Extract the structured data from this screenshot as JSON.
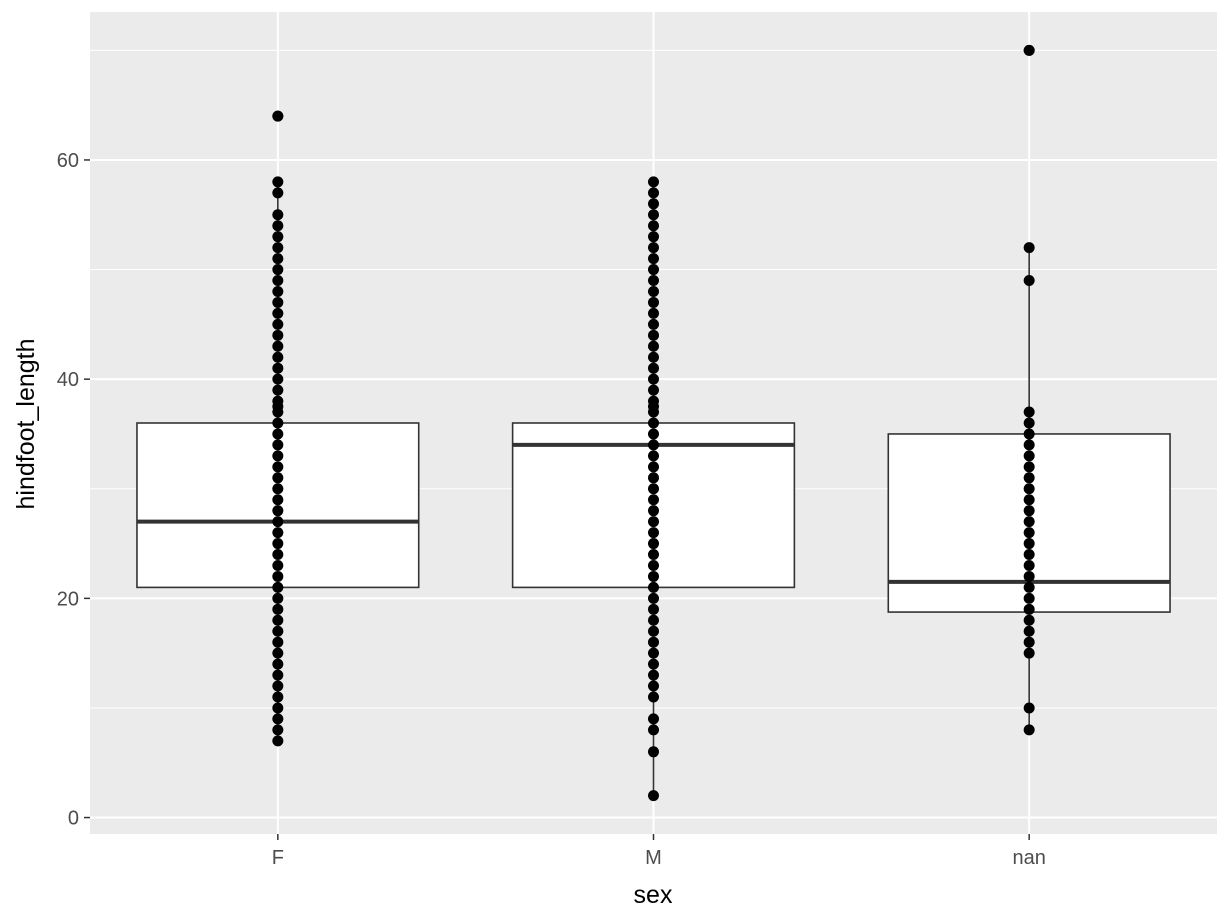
{
  "chart_data": {
    "type": "box",
    "title": "",
    "xlabel": "sex",
    "ylabel": "hindfoot_length",
    "categories": [
      "F",
      "M",
      "nan"
    ],
    "ylim": [
      -1.5,
      73.5
    ],
    "yticks": [
      0,
      20,
      40,
      60
    ],
    "grid": true,
    "legend": "none",
    "colors": {
      "panel_background": "#ebebeb",
      "grid": "#ffffff",
      "box_fill": "#ffffff",
      "box_stroke": "#333333",
      "point": "#000000"
    },
    "boxes": [
      {
        "category": "F",
        "q1": 21,
        "median": 27,
        "q3": 36,
        "whisker_low": 7,
        "whisker_high": 58,
        "outliers": [
          64
        ],
        "points": [
          7,
          8,
          9,
          10,
          11,
          12,
          13,
          14,
          15,
          16,
          17,
          18,
          19,
          20,
          21,
          22,
          23,
          24,
          25,
          26,
          27,
          28,
          29,
          30,
          31,
          32,
          33,
          34,
          35,
          36,
          37,
          37.5,
          38,
          39,
          40,
          41,
          42,
          43,
          44,
          45,
          46,
          47,
          48,
          49,
          50,
          51,
          52,
          53,
          54,
          55,
          57,
          58,
          64
        ]
      },
      {
        "category": "M",
        "q1": 21,
        "median": 34,
        "q3": 36,
        "whisker_low": 2,
        "whisker_high": 58,
        "outliers": [],
        "points": [
          2,
          6,
          8,
          9,
          11,
          12,
          13,
          14,
          15,
          16,
          17,
          18,
          19,
          20,
          21,
          22,
          23,
          24,
          25,
          26,
          27,
          28,
          29,
          30,
          31,
          32,
          33,
          34,
          35,
          36,
          37,
          37.5,
          38,
          39,
          40,
          41,
          42,
          43,
          44,
          45,
          46,
          47,
          48,
          49,
          50,
          51,
          52,
          53,
          54,
          55,
          56,
          57,
          58
        ]
      },
      {
        "category": "nan",
        "q1": 18.75,
        "median": 21.5,
        "q3": 35,
        "whisker_low": 8,
        "whisker_high": 52,
        "outliers": [
          70
        ],
        "points": [
          8,
          10,
          15,
          16,
          17,
          18,
          19,
          20,
          21,
          22,
          23,
          24,
          25,
          26,
          27,
          28,
          29,
          30,
          31,
          32,
          33,
          34,
          35,
          36,
          37,
          49,
          52,
          70
        ]
      }
    ]
  }
}
